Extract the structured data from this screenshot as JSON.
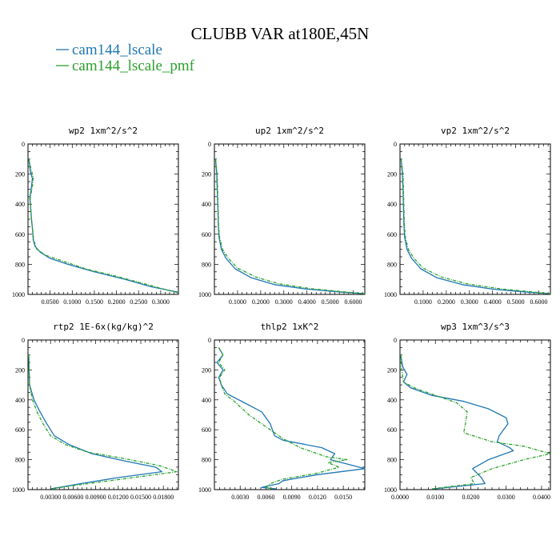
{
  "title": "CLUBB VAR at180E,45N",
  "legend": [
    {
      "label": "cam144_lscale",
      "color": "#1f77b4"
    },
    {
      "label": "cam144_lscale_pmf",
      "color": "#2ca02c"
    }
  ],
  "chart_data": [
    {
      "type": "line",
      "title": "wp2  1xm^2/s^2",
      "xlim": [
        0,
        0.34
      ],
      "ylim": [
        1000,
        0
      ],
      "xticks": [
        0.05,
        0.1,
        0.15,
        0.2,
        0.25,
        0.3
      ],
      "xticklabels": [
        "0.0500",
        "0.1000",
        "0.1500",
        "0.2000",
        "0.2500",
        "0.3000"
      ],
      "yticks": [
        0,
        200,
        400,
        600,
        800,
        1000
      ],
      "yticklabels": [
        "0",
        "200",
        "400",
        "600",
        "800",
        "1000"
      ],
      "series": [
        {
          "name": "cam144_lscale",
          "points": [
            [
              0.002,
              100
            ],
            [
              0.005,
              180
            ],
            [
              0.01,
              230
            ],
            [
              0.008,
              280
            ],
            [
              0.004,
              360
            ],
            [
              0.006,
              420
            ],
            [
              0.008,
              500
            ],
            [
              0.01,
              560
            ],
            [
              0.012,
              640
            ],
            [
              0.016,
              680
            ],
            [
              0.028,
              720
            ],
            [
              0.05,
              760
            ],
            [
              0.09,
              800
            ],
            [
              0.15,
              850
            ],
            [
              0.22,
              900
            ],
            [
              0.28,
              950
            ],
            [
              0.34,
              985
            ]
          ]
        },
        {
          "name": "cam144_lscale_pmf",
          "points": [
            [
              0.002,
              100
            ],
            [
              0.007,
              170
            ],
            [
              0.012,
              220
            ],
            [
              0.01,
              280
            ],
            [
              0.005,
              360
            ],
            [
              0.006,
              420
            ],
            [
              0.008,
              500
            ],
            [
              0.01,
              560
            ],
            [
              0.013,
              640
            ],
            [
              0.02,
              700
            ],
            [
              0.04,
              740
            ],
            [
              0.08,
              780
            ],
            [
              0.13,
              830
            ],
            [
              0.2,
              880
            ],
            [
              0.27,
              935
            ],
            [
              0.32,
              975
            ],
            [
              0.34,
              990
            ]
          ]
        }
      ]
    },
    {
      "type": "line",
      "title": "up2  1xm^2/s^2",
      "xlim": [
        0,
        0.65
      ],
      "ylim": [
        1000,
        0
      ],
      "xticks": [
        0.1,
        0.2,
        0.3,
        0.4,
        0.5,
        0.6
      ],
      "xticklabels": [
        "0.1000",
        "0.2000",
        "0.3000",
        "0.4000",
        "0.5000",
        "0.6000"
      ],
      "yticks": [
        0,
        200,
        400,
        600,
        800,
        1000
      ],
      "yticklabels": [
        "0",
        "200",
        "400",
        "600",
        "800",
        "1000"
      ],
      "series": [
        {
          "name": "cam144_lscale",
          "points": [
            [
              0.005,
              100
            ],
            [
              0.01,
              200
            ],
            [
              0.012,
              300
            ],
            [
              0.015,
              420
            ],
            [
              0.017,
              540
            ],
            [
              0.02,
              620
            ],
            [
              0.03,
              700
            ],
            [
              0.05,
              760
            ],
            [
              0.09,
              830
            ],
            [
              0.16,
              890
            ],
            [
              0.26,
              935
            ],
            [
              0.4,
              965
            ],
            [
              0.55,
              985
            ],
            [
              0.65,
              995
            ]
          ]
        },
        {
          "name": "cam144_lscale_pmf",
          "points": [
            [
              0.005,
              100
            ],
            [
              0.012,
              200
            ],
            [
              0.014,
              300
            ],
            [
              0.016,
              420
            ],
            [
              0.018,
              540
            ],
            [
              0.022,
              620
            ],
            [
              0.035,
              700
            ],
            [
              0.06,
              760
            ],
            [
              0.1,
              825
            ],
            [
              0.18,
              885
            ],
            [
              0.28,
              930
            ],
            [
              0.42,
              962
            ],
            [
              0.56,
              983
            ],
            [
              0.65,
              995
            ]
          ]
        }
      ]
    },
    {
      "type": "line",
      "title": "vp2  1xm^2/s^2",
      "xlim": [
        0,
        0.65
      ],
      "ylim": [
        1000,
        0
      ],
      "xticks": [
        0.1,
        0.2,
        0.3,
        0.4,
        0.5,
        0.6
      ],
      "xticklabels": [
        "0.1000",
        "0.2000",
        "0.3000",
        "0.4000",
        "0.5000",
        "0.6000"
      ],
      "yticks": [
        0,
        200,
        400,
        600,
        800,
        1000
      ],
      "yticklabels": [
        "0",
        "200",
        "400",
        "600",
        "800",
        "1000"
      ],
      "series": [
        {
          "name": "cam144_lscale",
          "points": [
            [
              0.005,
              100
            ],
            [
              0.01,
              200
            ],
            [
              0.013,
              300
            ],
            [
              0.015,
              420
            ],
            [
              0.017,
              540
            ],
            [
              0.02,
              620
            ],
            [
              0.03,
              700
            ],
            [
              0.05,
              760
            ],
            [
              0.09,
              830
            ],
            [
              0.16,
              890
            ],
            [
              0.27,
              935
            ],
            [
              0.4,
              965
            ],
            [
              0.55,
              985
            ],
            [
              0.65,
              995
            ]
          ]
        },
        {
          "name": "cam144_lscale_pmf",
          "points": [
            [
              0.005,
              100
            ],
            [
              0.013,
              200
            ],
            [
              0.015,
              300
            ],
            [
              0.017,
              420
            ],
            [
              0.019,
              540
            ],
            [
              0.023,
              620
            ],
            [
              0.036,
              700
            ],
            [
              0.06,
              760
            ],
            [
              0.1,
              825
            ],
            [
              0.18,
              885
            ],
            [
              0.29,
              930
            ],
            [
              0.43,
              962
            ],
            [
              0.57,
              983
            ],
            [
              0.65,
              995
            ]
          ]
        }
      ]
    },
    {
      "type": "line",
      "title": "rtp2  1E-6x(kg/kg)^2",
      "xlim": [
        0,
        0.02
      ],
      "ylim": [
        1000,
        0
      ],
      "xticks": [
        0.003,
        0.006,
        0.009,
        0.012,
        0.015,
        0.018
      ],
      "xticklabels": [
        "0.00300",
        "0.00600",
        "0.00900",
        "0.01200",
        "0.01500",
        "0.01800"
      ],
      "yticks": [
        0,
        200,
        400,
        600,
        800,
        1000
      ],
      "yticklabels": [
        "0",
        "200",
        "400",
        "600",
        "800",
        "1000"
      ],
      "series": [
        {
          "name": "cam144_lscale",
          "points": [
            [
              0.0001,
              100
            ],
            [
              0.0002,
              300
            ],
            [
              0.0008,
              400
            ],
            [
              0.0016,
              480
            ],
            [
              0.0025,
              560
            ],
            [
              0.0035,
              640
            ],
            [
              0.0055,
              700
            ],
            [
              0.0085,
              760
            ],
            [
              0.013,
              810
            ],
            [
              0.017,
              850
            ],
            [
              0.0178,
              880
            ],
            [
              0.012,
              920
            ],
            [
              0.007,
              960
            ],
            [
              0.003,
              995
            ]
          ]
        },
        {
          "name": "cam144_lscale_pmf",
          "points": [
            [
              0.0001,
              100
            ],
            [
              0.0002,
              300
            ],
            [
              0.0006,
              400
            ],
            [
              0.0012,
              480
            ],
            [
              0.002,
              560
            ],
            [
              0.003,
              640
            ],
            [
              0.005,
              700
            ],
            [
              0.008,
              750
            ],
            [
              0.0125,
              790
            ],
            [
              0.0175,
              840
            ],
            [
              0.0198,
              880
            ],
            [
              0.014,
              920
            ],
            [
              0.008,
              960
            ],
            [
              0.003,
              995
            ]
          ]
        }
      ]
    },
    {
      "type": "line",
      "title": "thlp2  1xK^2",
      "xlim": [
        0,
        0.0175
      ],
      "ylim": [
        1000,
        0
      ],
      "xticks": [
        0.003,
        0.006,
        0.009,
        0.012,
        0.015
      ],
      "xticklabels": [
        "0.0030",
        "0.0060",
        "0.0090",
        "0.0120",
        "0.0150"
      ],
      "yticks": [
        0,
        200,
        400,
        600,
        800,
        1000
      ],
      "yticklabels": [
        "0",
        "200",
        "400",
        "600",
        "800",
        "1000"
      ],
      "series": [
        {
          "name": "cam144_lscale",
          "points": [
            [
              0.0005,
              50
            ],
            [
              0.001,
              100
            ],
            [
              0.0003,
              150
            ],
            [
              0.001,
              200
            ],
            [
              0.0005,
              250
            ],
            [
              0.0008,
              300
            ],
            [
              0.0015,
              360
            ],
            [
              0.0035,
              420
            ],
            [
              0.0055,
              480
            ],
            [
              0.0065,
              560
            ],
            [
              0.007,
              640
            ],
            [
              0.008,
              670
            ],
            [
              0.0125,
              720
            ],
            [
              0.014,
              760
            ],
            [
              0.0135,
              800
            ],
            [
              0.0175,
              860
            ],
            [
              0.012,
              900
            ],
            [
              0.008,
              940
            ],
            [
              0.0075,
              960
            ],
            [
              0.0055,
              985
            ],
            [
              0.0072,
              995
            ]
          ]
        },
        {
          "name": "cam144_lscale_pmf",
          "points": [
            [
              0.0005,
              50
            ],
            [
              0.001,
              100
            ],
            [
              0.0005,
              150
            ],
            [
              0.0012,
              200
            ],
            [
              0.0006,
              250
            ],
            [
              0.0008,
              300
            ],
            [
              0.0012,
              360
            ],
            [
              0.0025,
              420
            ],
            [
              0.004,
              500
            ],
            [
              0.006,
              580
            ],
            [
              0.008,
              660
            ],
            [
              0.01,
              720
            ],
            [
              0.013,
              780
            ],
            [
              0.0155,
              800
            ],
            [
              0.0132,
              820
            ],
            [
              0.0145,
              850
            ],
            [
              0.012,
              890
            ],
            [
              0.008,
              930
            ],
            [
              0.0065,
              960
            ],
            [
              0.006,
              985
            ],
            [
              0.0068,
              995
            ]
          ]
        }
      ]
    },
    {
      "type": "line",
      "title": "wp3  1xm^3/s^3",
      "xlim": [
        0,
        0.0425
      ],
      "ylim": [
        1000,
        0
      ],
      "xticks": [
        0,
        0.01,
        0.02,
        0.03,
        0.04
      ],
      "xticklabels": [
        "0.0000",
        "0.0100",
        "0.0200",
        "0.0300",
        "0.0400"
      ],
      "yticks": [
        0,
        200,
        400,
        600,
        800,
        1000
      ],
      "yticklabels": [
        "0",
        "200",
        "400",
        "600",
        "800",
        "1000"
      ],
      "series": [
        {
          "name": "cam144_lscale",
          "points": [
            [
              0.0002,
              100
            ],
            [
              0.0008,
              180
            ],
            [
              0.002,
              230
            ],
            [
              0.001,
              280
            ],
            [
              0.003,
              320
            ],
            [
              0.009,
              370
            ],
            [
              0.018,
              410
            ],
            [
              0.025,
              460
            ],
            [
              0.03,
              520
            ],
            [
              0.0305,
              560
            ],
            [
              0.028,
              640
            ],
            [
              0.0275,
              680
            ],
            [
              0.031,
              720
            ],
            [
              0.032,
              740
            ],
            [
              0.025,
              800
            ],
            [
              0.0205,
              860
            ],
            [
              0.023,
              920
            ],
            [
              0.024,
              960
            ],
            [
              0.0095,
              995
            ]
          ]
        },
        {
          "name": "cam144_lscale_pmf",
          "points": [
            [
              0.0002,
              100
            ],
            [
              0.0005,
              200
            ],
            [
              0.001,
              280
            ],
            [
              0.004,
              320
            ],
            [
              0.01,
              370
            ],
            [
              0.016,
              420
            ],
            [
              0.019,
              480
            ],
            [
              0.0185,
              560
            ],
            [
              0.018,
              620
            ],
            [
              0.026,
              680
            ],
            [
              0.035,
              710
            ],
            [
              0.0425,
              760
            ],
            [
              0.035,
              800
            ],
            [
              0.026,
              860
            ],
            [
              0.02,
              920
            ],
            [
              0.021,
              960
            ],
            [
              0.009,
              995
            ]
          ]
        }
      ]
    }
  ]
}
